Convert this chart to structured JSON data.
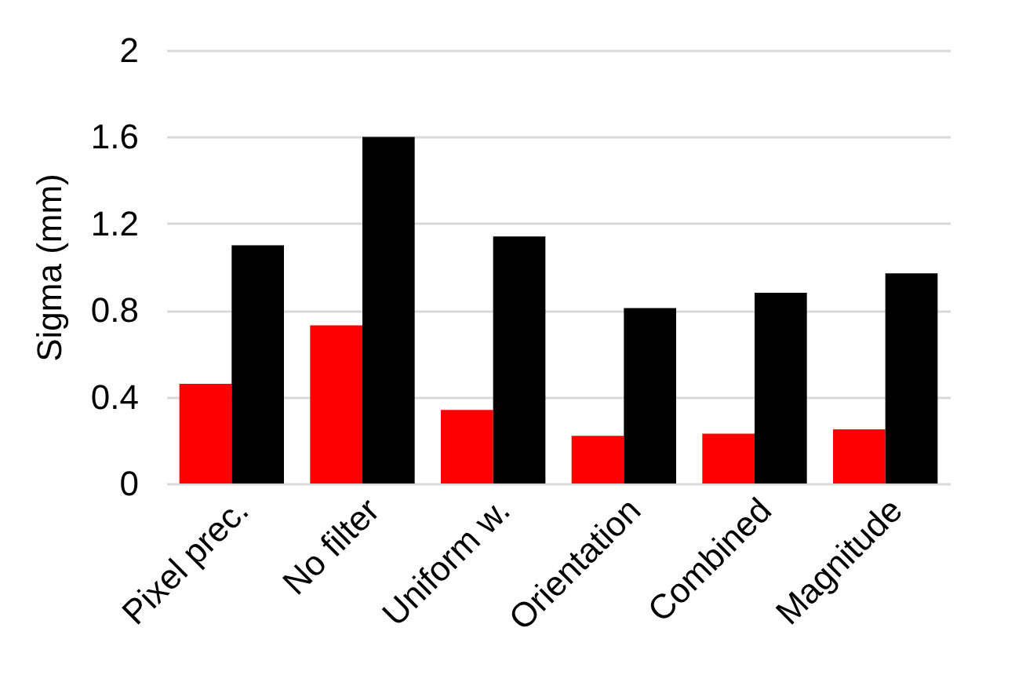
{
  "chart_data": {
    "type": "bar",
    "ylabel": "Sigma (mm)",
    "categories": [
      "Pixel prec.",
      "No filter",
      "Uniform w.",
      "Orientation",
      "Combined",
      "Magnitude"
    ],
    "series": [
      {
        "color": "#ff0000",
        "values": [
          0.46,
          0.73,
          0.34,
          0.22,
          0.23,
          0.25
        ]
      },
      {
        "color": "#000000",
        "values": [
          1.1,
          1.6,
          1.14,
          0.81,
          0.88,
          0.97
        ]
      }
    ],
    "ylim": [
      0,
      2
    ],
    "yticks": [
      0,
      0.4,
      0.8,
      1.2,
      1.6,
      2
    ],
    "grid": "y",
    "legend": false
  }
}
